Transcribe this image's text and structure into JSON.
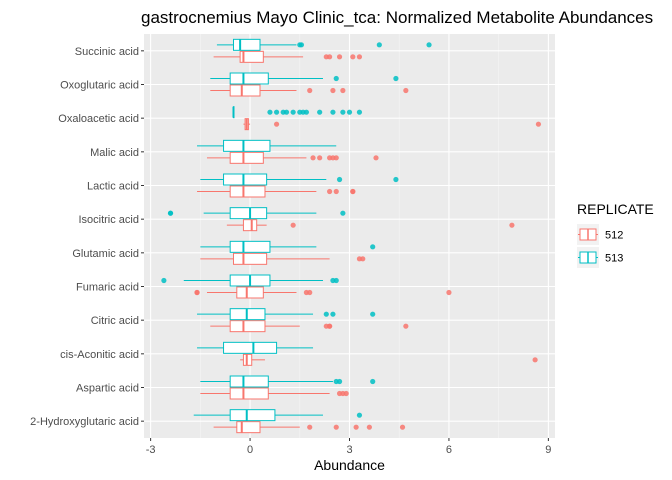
{
  "chart_data": {
    "type": "boxplot",
    "orientation": "horizontal",
    "title": "gastrocnemius Mayo Clinic_tca: Normalized Metabolite Abundances",
    "xlabel": "Abundance",
    "ylabel": "",
    "xlim": [
      -3.2,
      9.2
    ],
    "xticks": [
      -3,
      0,
      3,
      6,
      9
    ],
    "grid": true,
    "legend": {
      "title": "REPLICATE",
      "position": "right",
      "entries": [
        {
          "label": "512",
          "color": "#F8766D"
        },
        {
          "label": "513",
          "color": "#00BFC4"
        }
      ]
    },
    "categories": [
      "Succinic acid",
      "Oxoglutaric acid",
      "Oxaloacetic acid",
      "Malic acid",
      "Lactic acid",
      "Isocitric acid",
      "Glutamic acid",
      "Fumaric acid",
      "Citric acid",
      "cis-Aconitic acid",
      "Aspartic acid",
      "2-Hydroxyglutaric acid"
    ],
    "series": [
      {
        "name": "512",
        "color": "#F8766D",
        "boxes": [
          {
            "category": "Succinic acid",
            "whisker_low": -1.1,
            "q1": -0.3,
            "median": -0.2,
            "q3": 0.4,
            "whisker_high": 1.6,
            "outliers": [
              2.3,
              2.4,
              2.7,
              3.1,
              3.3
            ]
          },
          {
            "category": "Oxoglutaric acid",
            "whisker_low": -1.2,
            "q1": -0.6,
            "median": -0.25,
            "q3": 0.3,
            "whisker_high": 1.4,
            "outliers": [
              1.8,
              2.5,
              2.8,
              4.7
            ]
          },
          {
            "category": "Oxaloacetic acid",
            "whisker_low": -0.2,
            "q1": -0.15,
            "median": -0.1,
            "q3": -0.05,
            "whisker_high": 0.0,
            "outliers": [
              0.8,
              8.7
            ]
          },
          {
            "category": "Malic acid",
            "whisker_low": -1.3,
            "q1": -0.6,
            "median": -0.2,
            "q3": 0.4,
            "whisker_high": 1.7,
            "outliers": [
              1.9,
              2.1,
              2.4,
              2.5,
              2.6,
              3.8
            ]
          },
          {
            "category": "Lactic acid",
            "whisker_low": -1.6,
            "q1": -0.6,
            "median": -0.2,
            "q3": 0.45,
            "whisker_high": 2.0,
            "outliers": [
              2.4,
              2.6,
              3.1,
              3.1
            ]
          },
          {
            "category": "Isocitric acid",
            "whisker_low": -0.7,
            "q1": -0.2,
            "median": 0.05,
            "q3": 0.2,
            "whisker_high": 0.5,
            "outliers": [
              1.3,
              7.9
            ]
          },
          {
            "category": "Glutamic acid",
            "whisker_low": -1.5,
            "q1": -0.5,
            "median": -0.2,
            "q3": 0.5,
            "whisker_high": 2.4,
            "outliers": [
              3.3,
              3.4
            ]
          },
          {
            "category": "Fumaric acid",
            "whisker_low": -1.3,
            "q1": -0.4,
            "median": -0.1,
            "q3": 0.4,
            "whisker_high": 1.4,
            "outliers": [
              -1.6,
              -1.6,
              1.7,
              1.8,
              6.0
            ]
          },
          {
            "category": "Citric acid",
            "whisker_low": -1.2,
            "q1": -0.6,
            "median": -0.2,
            "q3": 0.45,
            "whisker_high": 1.5,
            "outliers": [
              2.3,
              2.4,
              2.4,
              4.7
            ]
          },
          {
            "category": "cis-Aconitic acid",
            "whisker_low": -0.3,
            "q1": -0.2,
            "median": -0.1,
            "q3": 0.05,
            "whisker_high": 0.45,
            "outliers": [
              8.6
            ]
          },
          {
            "category": "Aspartic acid",
            "whisker_low": -1.5,
            "q1": -0.6,
            "median": -0.2,
            "q3": 0.55,
            "whisker_high": 2.4,
            "outliers": [
              2.7,
              2.8,
              2.9
            ]
          },
          {
            "category": "2-Hydroxyglutaric acid",
            "whisker_low": -1.1,
            "q1": -0.4,
            "median": -0.25,
            "q3": 0.3,
            "whisker_high": 1.5,
            "outliers": [
              1.8,
              2.6,
              3.2,
              3.6,
              4.6
            ]
          }
        ]
      },
      {
        "name": "513",
        "color": "#00BFC4",
        "boxes": [
          {
            "category": "Succinic acid",
            "whisker_low": -1.0,
            "q1": -0.5,
            "median": -0.3,
            "q3": 0.3,
            "whisker_high": 1.4,
            "outliers": [
              1.5,
              1.55,
              3.9,
              5.4
            ]
          },
          {
            "category": "Oxoglutaric acid",
            "whisker_low": -1.2,
            "q1": -0.6,
            "median": -0.2,
            "q3": 0.55,
            "whisker_high": 2.2,
            "outliers": [
              2.6,
              4.4
            ]
          },
          {
            "category": "Oxaloacetic acid",
            "whisker_low": -0.5,
            "q1": -0.5,
            "median": -0.5,
            "q3": -0.5,
            "whisker_high": -0.5,
            "outliers": [
              0.6,
              0.8,
              1.0,
              1.1,
              1.3,
              1.5,
              1.6,
              1.7,
              2.1,
              2.5,
              2.8,
              3.0,
              3.3
            ]
          },
          {
            "category": "Malic acid",
            "whisker_low": -1.6,
            "q1": -0.8,
            "median": -0.2,
            "q3": 0.6,
            "whisker_high": 2.6,
            "outliers": []
          },
          {
            "category": "Lactic acid",
            "whisker_low": -1.5,
            "q1": -0.8,
            "median": -0.2,
            "q3": 0.5,
            "whisker_high": 2.3,
            "outliers": [
              2.7,
              4.4
            ]
          },
          {
            "category": "Isocitric acid",
            "whisker_low": -1.4,
            "q1": -0.6,
            "median": 0.0,
            "q3": 0.5,
            "whisker_high": 2.0,
            "outliers": [
              -2.4,
              -2.4,
              2.8
            ]
          },
          {
            "category": "Glutamic acid",
            "whisker_low": -1.5,
            "q1": -0.6,
            "median": -0.2,
            "q3": 0.6,
            "whisker_high": 2.0,
            "outliers": [
              3.7
            ]
          },
          {
            "category": "Fumaric acid",
            "whisker_low": -2.0,
            "q1": -0.6,
            "median": 0.0,
            "q3": 0.6,
            "whisker_high": 2.2,
            "outliers": [
              -2.6,
              2.5,
              2.6
            ]
          },
          {
            "category": "Citric acid",
            "whisker_low": -1.6,
            "q1": -0.6,
            "median": -0.1,
            "q3": 0.45,
            "whisker_high": 1.9,
            "outliers": [
              2.3,
              2.5,
              3.7
            ]
          },
          {
            "category": "cis-Aconitic acid",
            "whisker_low": -1.6,
            "q1": -0.8,
            "median": 0.1,
            "q3": 0.8,
            "whisker_high": 1.9,
            "outliers": []
          },
          {
            "category": "Aspartic acid",
            "whisker_low": -1.5,
            "q1": -0.6,
            "median": -0.2,
            "q3": 0.55,
            "whisker_high": 2.5,
            "outliers": [
              2.6,
              2.7,
              3.7
            ]
          },
          {
            "category": "2-Hydroxyglutaric acid",
            "whisker_low": -1.7,
            "q1": -0.6,
            "median": -0.1,
            "q3": 0.75,
            "whisker_high": 2.2,
            "outliers": [
              3.3
            ]
          }
        ]
      }
    ]
  }
}
